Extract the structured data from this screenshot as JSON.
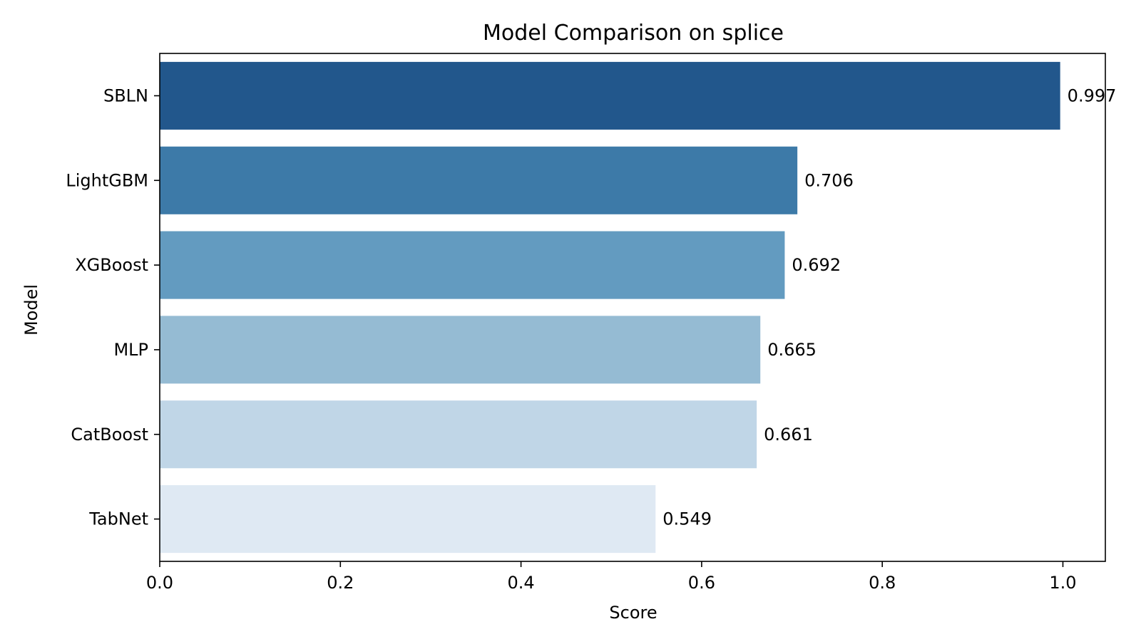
{
  "chart_data": {
    "type": "bar",
    "orientation": "horizontal",
    "title": "Model Comparison on splice",
    "xlabel": "Score",
    "ylabel": "Model",
    "categories": [
      "SBLN",
      "LightGBM",
      "XGBoost",
      "MLP",
      "CatBoost",
      "TabNet"
    ],
    "values": [
      0.997,
      0.706,
      0.692,
      0.665,
      0.661,
      0.549
    ],
    "value_labels": [
      "0.997",
      "0.706",
      "0.692",
      "0.665",
      "0.661",
      "0.549"
    ],
    "colors": [
      "#22578c",
      "#3d7aa8",
      "#639bc0",
      "#95bbd3",
      "#c0d6e7",
      "#dfe9f3"
    ],
    "xlim": [
      0,
      1.047
    ],
    "xticks": [
      0,
      0.2,
      0.4,
      0.6,
      0.8,
      1.0
    ],
    "xtick_labels": [
      "0.0",
      "0.2",
      "0.4",
      "0.6",
      "0.8",
      "1.0"
    ],
    "grid": false,
    "legend": "none"
  }
}
